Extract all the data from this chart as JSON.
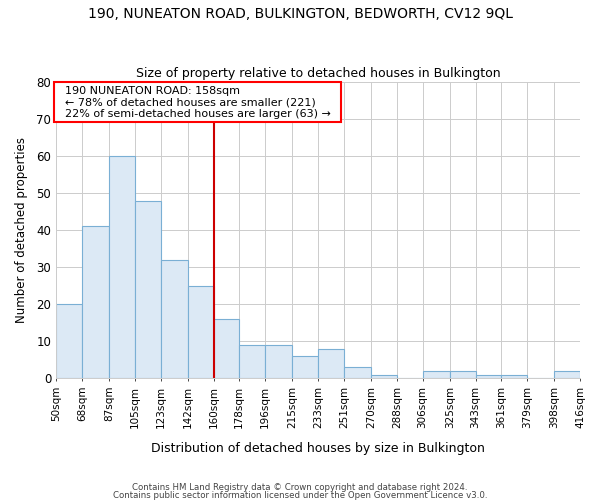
{
  "title1": "190, NUNEATON ROAD, BULKINGTON, BEDWORTH, CV12 9QL",
  "title2": "Size of property relative to detached houses in Bulkington",
  "xlabel": "Distribution of detached houses by size in Bulkington",
  "ylabel": "Number of detached properties",
  "bin_edges": [
    50,
    68,
    87,
    105,
    123,
    142,
    160,
    178,
    196,
    215,
    233,
    251,
    270,
    288,
    306,
    325,
    343,
    361,
    379,
    398,
    416
  ],
  "bar_heights": [
    20,
    41,
    60,
    48,
    32,
    25,
    16,
    9,
    9,
    6,
    8,
    3,
    1,
    0,
    2,
    2,
    1,
    1,
    0,
    2
  ],
  "bar_color": "#dce9f5",
  "bar_edge_color": "#7aafd4",
  "vline_x": 160,
  "vline_color": "#cc0000",
  "ylim": [
    0,
    80
  ],
  "yticks": [
    0,
    10,
    20,
    30,
    40,
    50,
    60,
    70,
    80
  ],
  "tick_labels": [
    "50sqm",
    "68sqm",
    "87sqm",
    "105sqm",
    "123sqm",
    "142sqm",
    "160sqm",
    "178sqm",
    "196sqm",
    "215sqm",
    "233sqm",
    "251sqm",
    "270sqm",
    "288sqm",
    "306sqm",
    "325sqm",
    "343sqm",
    "361sqm",
    "379sqm",
    "398sqm",
    "416sqm"
  ],
  "annotation_title": "190 NUNEATON ROAD: 158sqm",
  "annotation_line1": "← 78% of detached houses are smaller (221)",
  "annotation_line2": "22% of semi-detached houses are larger (63) →",
  "footer1": "Contains HM Land Registry data © Crown copyright and database right 2024.",
  "footer2": "Contains public sector information licensed under the Open Government Licence v3.0.",
  "bg_color": "#ffffff",
  "plot_bg_color": "#ffffff",
  "grid_color": "#cccccc"
}
